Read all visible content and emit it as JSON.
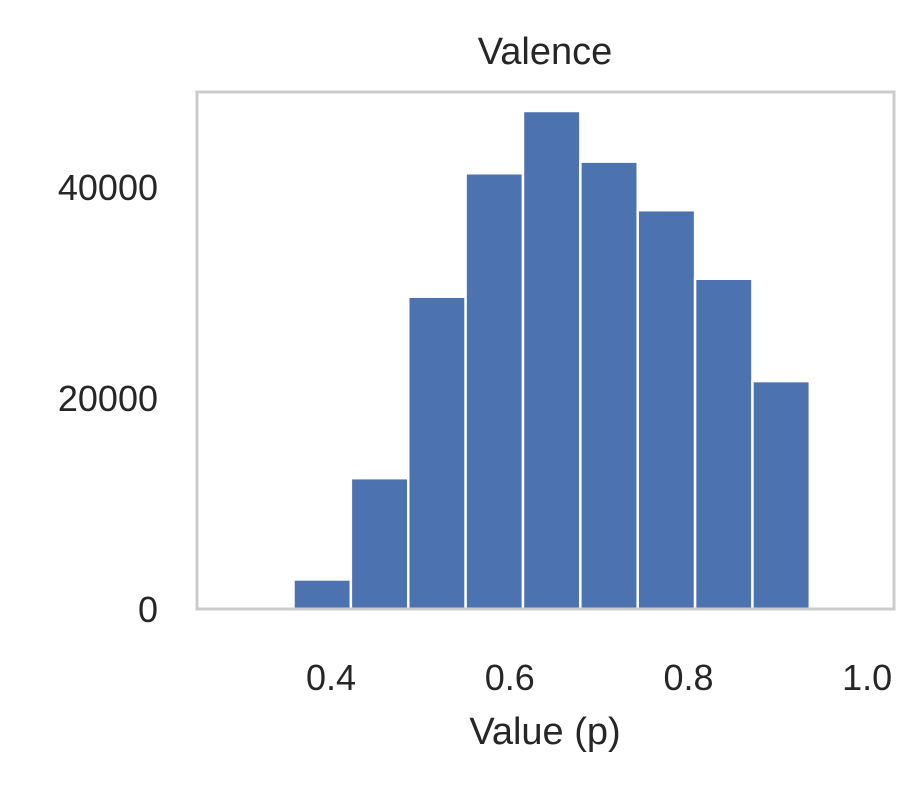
{
  "chart_data": {
    "type": "bar",
    "subtype": "histogram",
    "title": "Valence",
    "xlabel": "Value (p)",
    "ylabel": "",
    "xlim": [
      0.25,
      1.03
    ],
    "ylim": [
      0,
      49000
    ],
    "xticks": [
      0.4,
      0.6,
      0.8,
      1.0
    ],
    "xtick_labels": [
      "0.4",
      "0.6",
      "0.8",
      "1.0"
    ],
    "yticks": [
      0,
      20000,
      40000
    ],
    "ytick_labels": [
      "0",
      "20000",
      "40000"
    ],
    "grid": false,
    "bins": [
      {
        "start": 0.358,
        "end": 0.4222,
        "count": 2800
      },
      {
        "start": 0.4222,
        "end": 0.4864,
        "count": 12400
      },
      {
        "start": 0.4864,
        "end": 0.5506,
        "count": 29600
      },
      {
        "start": 0.5506,
        "end": 0.6148,
        "count": 41300
      },
      {
        "start": 0.6148,
        "end": 0.679,
        "count": 47200
      },
      {
        "start": 0.679,
        "end": 0.7432,
        "count": 42400
      },
      {
        "start": 0.7432,
        "end": 0.8074,
        "count": 37800
      },
      {
        "start": 0.8074,
        "end": 0.8716,
        "count": 31300
      },
      {
        "start": 0.8716,
        "end": 0.9358,
        "count": 21600
      },
      {
        "start": 0.9358,
        "end": 1.0,
        "count": 0
      }
    ],
    "bar_color": "#4c72b0",
    "frame_color": "#cccccc"
  }
}
